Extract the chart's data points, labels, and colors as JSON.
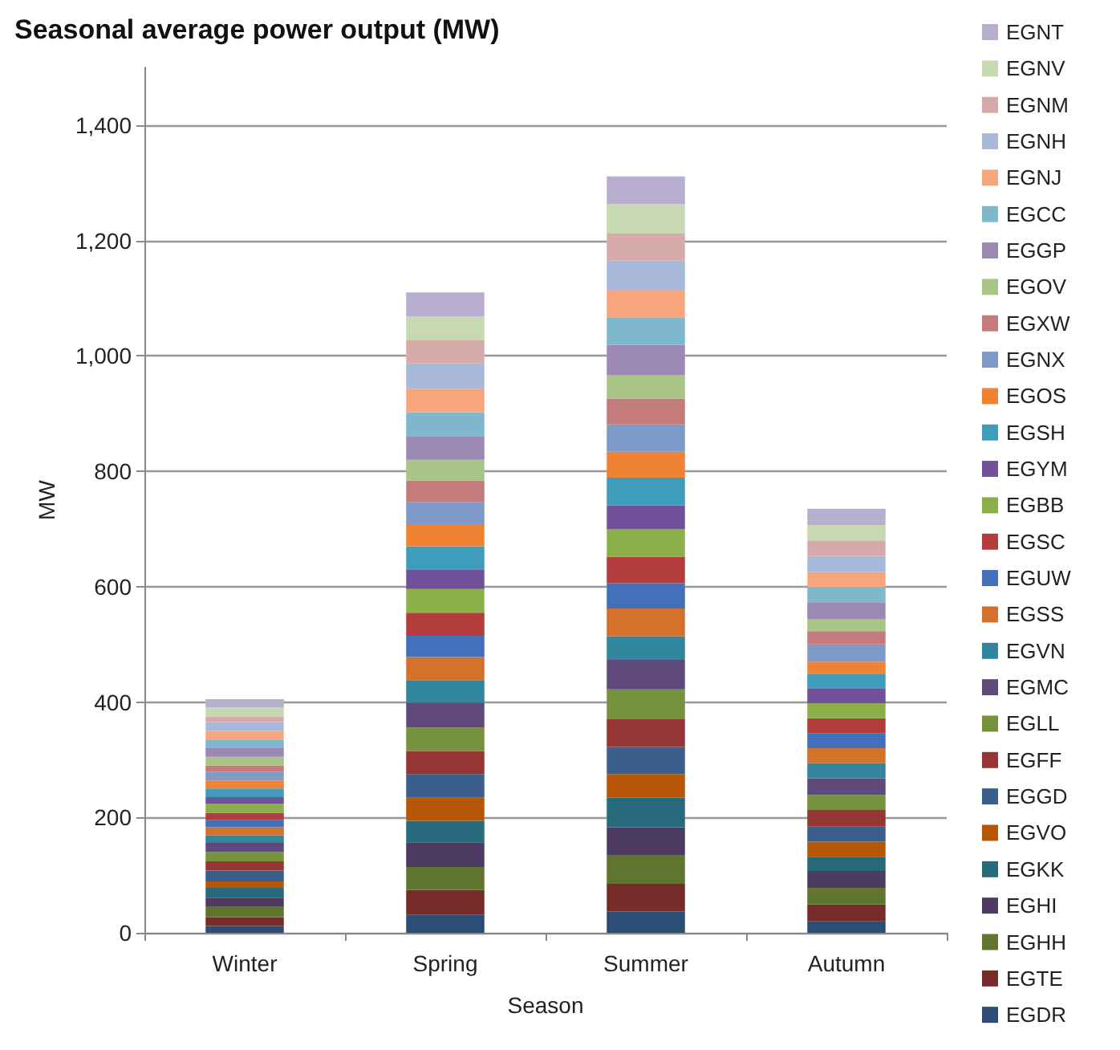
{
  "chart_data": {
    "type": "bar",
    "stacked": true,
    "title": "Seasonal average power output (MW)",
    "xlabel": "Season",
    "ylabel": "MW",
    "categories": [
      "Winter",
      "Spring",
      "Summer",
      "Autumn"
    ],
    "ylim": [
      0,
      1500
    ],
    "yticks": [
      0,
      200,
      400,
      600,
      800,
      {
        "value": 1000,
        "label": "1,000"
      },
      {
        "value": 1200,
        "label": "1,200"
      },
      {
        "value": 1400,
        "label": "1,400"
      }
    ],
    "grid": "y",
    "legend": "right",
    "series": [
      {
        "name": "EGDR",
        "color": "#2c4d75",
        "values": [
          12,
          31,
          37,
          20
        ]
      },
      {
        "name": "EGTE",
        "color": "#772c2a",
        "values": [
          15,
          43,
          48,
          29
        ]
      },
      {
        "name": "EGHH",
        "color": "#5f7530",
        "values": [
          18,
          40,
          50,
          29
        ]
      },
      {
        "name": "EGHI",
        "color": "#4d3b62",
        "values": [
          16,
          43,
          48,
          29
        ]
      },
      {
        "name": "EGKK",
        "color": "#276a7c",
        "values": [
          17,
          37,
          51,
          25
        ]
      },
      {
        "name": "EGVO",
        "color": "#b65708",
        "values": [
          11,
          40,
          41,
          26
        ]
      },
      {
        "name": "EGGD",
        "color": "#3a5f8b",
        "values": [
          19,
          41,
          47,
          26
        ]
      },
      {
        "name": "EGFF",
        "color": "#963634",
        "values": [
          16,
          40,
          49,
          29
        ]
      },
      {
        "name": "EGLL",
        "color": "#76923c",
        "values": [
          16,
          41,
          51,
          26
        ]
      },
      {
        "name": "EGMC",
        "color": "#5f497a",
        "values": [
          16,
          43,
          51,
          29
        ]
      },
      {
        "name": "EGVN",
        "color": "#31859c",
        "values": [
          13,
          39,
          41,
          26
        ]
      },
      {
        "name": "EGSS",
        "color": "#d4712b",
        "values": [
          14,
          40,
          48,
          26
        ]
      },
      {
        "name": "EGUW",
        "color": "#4470b9",
        "values": [
          12,
          37,
          44,
          26
        ]
      },
      {
        "name": "EGSC",
        "color": "#b33c3c",
        "values": [
          13,
          40,
          46,
          26
        ]
      },
      {
        "name": "EGBB",
        "color": "#8bb04a",
        "values": [
          16,
          41,
          48,
          26
        ]
      },
      {
        "name": "EGYM",
        "color": "#71519a",
        "values": [
          11,
          34,
          41,
          26
        ]
      },
      {
        "name": "EGSH",
        "color": "#3f9cba",
        "values": [
          15,
          40,
          48,
          25
        ]
      },
      {
        "name": "EGOS",
        "color": "#f08234",
        "values": [
          14,
          37,
          45,
          21
        ]
      },
      {
        "name": "EGNX",
        "color": "#7e9ac8",
        "values": [
          15,
          40,
          47,
          30
        ]
      },
      {
        "name": "EGXW",
        "color": "#c47b7b",
        "values": [
          11,
          37,
          45,
          23
        ]
      },
      {
        "name": "EGOV",
        "color": "#a9c487",
        "values": [
          15,
          36,
          41,
          21
        ]
      },
      {
        "name": "EGGP",
        "color": "#9b88b3",
        "values": [
          15,
          41,
          52,
          29
        ]
      },
      {
        "name": "EGCC",
        "color": "#7fb8cc",
        "values": [
          15,
          41,
          48,
          26
        ]
      },
      {
        "name": "EGNJ",
        "color": "#f6a57d",
        "values": [
          15,
          41,
          46,
          26
        ]
      },
      {
        "name": "EGNH",
        "color": "#a9b9d9",
        "values": [
          15,
          44,
          52,
          28
        ]
      },
      {
        "name": "EGNM",
        "color": "#d7aaaa",
        "values": [
          10,
          41,
          47,
          27
        ]
      },
      {
        "name": "EGNV",
        "color": "#c6d9b1",
        "values": [
          16,
          40,
          51,
          27
        ]
      },
      {
        "name": "EGNT",
        "color": "#b8aecf",
        "values": [
          14,
          42,
          48,
          28
        ]
      }
    ]
  }
}
